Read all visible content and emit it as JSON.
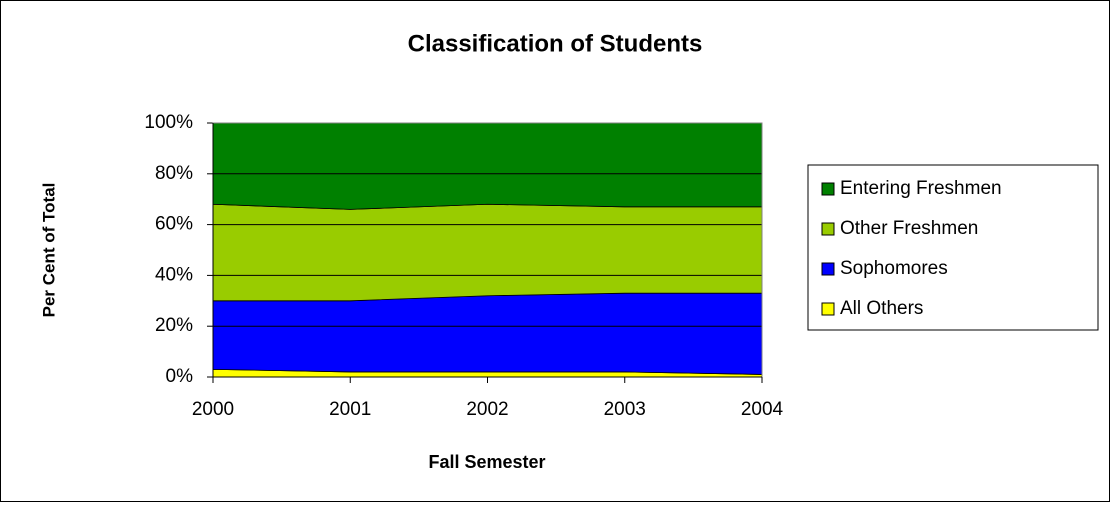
{
  "chart_data": {
    "type": "stacked_area",
    "title": "Classification of Students",
    "xlabel": "Fall Semester",
    "ylabel": "Per Cent of Total",
    "categories": [
      "2000",
      "2001",
      "2002",
      "2003",
      "2004"
    ],
    "series": [
      {
        "name": "All Others",
        "color": "#ffff00",
        "values": [
          3,
          2,
          2,
          2,
          1
        ]
      },
      {
        "name": "Sophomores",
        "color": "#0000ff",
        "values": [
          27,
          28,
          30,
          31,
          32
        ]
      },
      {
        "name": "Other Freshmen",
        "color": "#99cc00",
        "values": [
          38,
          36,
          36,
          34,
          34
        ]
      },
      {
        "name": "Entering Freshmen",
        "color": "#008000",
        "values": [
          32,
          34,
          32,
          33,
          33
        ]
      }
    ],
    "ylim": [
      0,
      100
    ],
    "yticks": [
      {
        "value": 0,
        "label": "0%"
      },
      {
        "value": 20,
        "label": "20%"
      },
      {
        "value": 40,
        "label": "40%"
      },
      {
        "value": 60,
        "label": "60%"
      },
      {
        "value": 80,
        "label": "80%"
      },
      {
        "value": 100,
        "label": "100%"
      }
    ],
    "grid": true,
    "legend": "right"
  }
}
